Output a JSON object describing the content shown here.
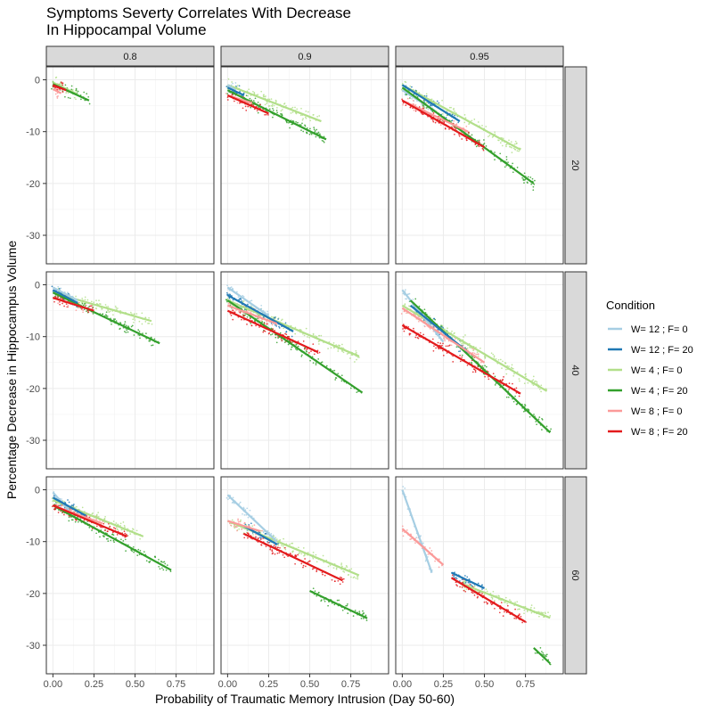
{
  "chart_data": {
    "type": "scatter",
    "title_lines": [
      "Symptoms Severty Correlates With Decrease",
      "In Hippocampal Volume"
    ],
    "xlabel": "Probability of Traumatic Memory Intrusion (Day 50-60)",
    "ylabel": "Percentage Decrease in Hippocampus Volume",
    "xlim": [
      -0.04,
      0.98
    ],
    "ylim": [
      -35.5,
      2.5
    ],
    "x_ticks": [
      0,
      0.25,
      0.5,
      0.75
    ],
    "x_tick_labels": [
      "0.00",
      "0.25",
      "0.50",
      "0.75"
    ],
    "y_ticks": [
      0,
      -10,
      -20,
      -30
    ],
    "y_tick_labels": [
      "0",
      "-10",
      "-20",
      "-30"
    ],
    "grid": true,
    "facet_cols": [
      "0.8",
      "0.9",
      "0.95"
    ],
    "facet_rows": [
      "20",
      "40",
      "60"
    ],
    "legend": {
      "title": "Condition",
      "position": "right",
      "items": [
        {
          "label": "W= 12 ; F= 0",
          "color": "#a6cee3"
        },
        {
          "label": "W= 12 ; F= 20",
          "color": "#1f78b4"
        },
        {
          "label": "W= 4 ; F= 0",
          "color": "#b2df8a"
        },
        {
          "label": "W= 4 ; F= 20",
          "color": "#33a02c"
        },
        {
          "label": "W= 8 ; F= 0",
          "color": "#fb9a99"
        },
        {
          "label": "W= 8 ; F= 20",
          "color": "#e31a1c"
        }
      ]
    },
    "panels": [
      {
        "row": "20",
        "col": "0.8",
        "series": [
          {
            "condition": "W= 4 ; F= 0",
            "x": [
              0.0,
              0.15
            ],
            "y": [
              -0.5,
              -2.8
            ]
          },
          {
            "condition": "W= 4 ; F= 20",
            "x": [
              0.0,
              0.22
            ],
            "y": [
              -0.8,
              -4.0
            ]
          },
          {
            "condition": "W= 8 ; F= 0",
            "x": [
              0.0,
              0.05
            ],
            "y": [
              -1.8,
              -2.6
            ]
          },
          {
            "condition": "W= 8 ; F= 20",
            "x": [
              0.0,
              0.08
            ],
            "y": [
              -1.0,
              -2.0
            ]
          }
        ]
      },
      {
        "row": "20",
        "col": "0.9",
        "series": [
          {
            "condition": "W= 12 ; F= 0",
            "x": [
              0.0,
              0.05
            ],
            "y": [
              -1.0,
              -2.0
            ]
          },
          {
            "condition": "W= 12 ; F= 20",
            "x": [
              0.0,
              0.1
            ],
            "y": [
              -1.5,
              -3.0
            ]
          },
          {
            "condition": "W= 4 ; F= 0",
            "x": [
              0.0,
              0.57
            ],
            "y": [
              -1.0,
              -8.0
            ]
          },
          {
            "condition": "W= 4 ; F= 20",
            "x": [
              0.0,
              0.6
            ],
            "y": [
              -2.0,
              -11.5
            ]
          },
          {
            "condition": "W= 8 ; F= 0",
            "x": [
              0.0,
              0.15
            ],
            "y": [
              -3.0,
              -4.5
            ]
          },
          {
            "condition": "W= 8 ; F= 20",
            "x": [
              0.0,
              0.25
            ],
            "y": [
              -3.0,
              -6.5
            ]
          }
        ]
      },
      {
        "row": "20",
        "col": "0.95",
        "series": [
          {
            "condition": "W= 12 ; F= 0",
            "x": [
              0.0,
              0.2
            ],
            "y": [
              -2.0,
              -6.0
            ]
          },
          {
            "condition": "W= 12 ; F= 20",
            "x": [
              0.0,
              0.35
            ],
            "y": [
              -1.0,
              -8.0
            ]
          },
          {
            "condition": "W= 4 ; F= 0",
            "x": [
              0.0,
              0.72
            ],
            "y": [
              -1.0,
              -13.5
            ]
          },
          {
            "condition": "W= 4 ; F= 20",
            "x": [
              0.0,
              0.8
            ],
            "y": [
              -1.5,
              -20.0
            ]
          },
          {
            "condition": "W= 8 ; F= 0",
            "x": [
              0.0,
              0.4
            ],
            "y": [
              -4.0,
              -10.0
            ]
          },
          {
            "condition": "W= 8 ; F= 20",
            "x": [
              0.0,
              0.5
            ],
            "y": [
              -4.0,
              -13.0
            ]
          }
        ]
      },
      {
        "row": "40",
        "col": "0.8",
        "series": [
          {
            "condition": "W= 12 ; F= 0",
            "x": [
              0.0,
              0.15
            ],
            "y": [
              -0.5,
              -3.0
            ]
          },
          {
            "condition": "W= 12 ; F= 20",
            "x": [
              0.0,
              0.15
            ],
            "y": [
              -1.0,
              -3.5
            ]
          },
          {
            "condition": "W= 4 ; F= 0",
            "x": [
              0.0,
              0.6
            ],
            "y": [
              -1.5,
              -7.0
            ]
          },
          {
            "condition": "W= 4 ; F= 20",
            "x": [
              0.0,
              0.65
            ],
            "y": [
              -1.5,
              -11.3
            ]
          },
          {
            "condition": "W= 8 ; F= 0",
            "x": [
              0.0,
              0.2
            ],
            "y": [
              -2.5,
              -4.5
            ]
          },
          {
            "condition": "W= 8 ; F= 20",
            "x": [
              0.0,
              0.25
            ],
            "y": [
              -2.5,
              -5.0
            ]
          }
        ]
      },
      {
        "row": "40",
        "col": "0.9",
        "series": [
          {
            "condition": "W= 12 ; F= 0",
            "x": [
              0.0,
              0.25
            ],
            "y": [
              -0.5,
              -6.0
            ]
          },
          {
            "condition": "W= 12 ; F= 20",
            "x": [
              0.0,
              0.4
            ],
            "y": [
              -2.0,
              -9.0
            ]
          },
          {
            "condition": "W= 4 ; F= 0",
            "x": [
              0.0,
              0.8
            ],
            "y": [
              -3.0,
              -13.8
            ]
          },
          {
            "condition": "W= 4 ; F= 20",
            "x": [
              0.0,
              0.82
            ],
            "y": [
              -3.0,
              -20.8
            ]
          },
          {
            "condition": "W= 8 ; F= 0",
            "x": [
              0.0,
              0.3
            ],
            "y": [
              -4.0,
              -7.5
            ]
          },
          {
            "condition": "W= 8 ; F= 20",
            "x": [
              0.0,
              0.55
            ],
            "y": [
              -5.0,
              -13.0
            ]
          }
        ]
      },
      {
        "row": "40",
        "col": "0.95",
        "series": [
          {
            "condition": "W= 12 ; F= 0",
            "x": [
              0.0,
              0.25
            ],
            "y": [
              -1.0,
              -11.0
            ]
          },
          {
            "condition": "W= 12 ; F= 20",
            "x": [
              0.05,
              0.4
            ],
            "y": [
              -4.0,
              -13.0
            ]
          },
          {
            "condition": "W= 4 ; F= 0",
            "x": [
              0.0,
              0.88
            ],
            "y": [
              -4.0,
              -20.5
            ]
          },
          {
            "condition": "W= 4 ; F= 20",
            "x": [
              0.05,
              0.9
            ],
            "y": [
              -3.0,
              -28.5
            ]
          },
          {
            "condition": "W= 8 ; F= 0",
            "x": [
              0.0,
              0.5
            ],
            "y": [
              -4.5,
              -15.0
            ]
          },
          {
            "condition": "W= 8 ; F= 20",
            "x": [
              0.0,
              0.72
            ],
            "y": [
              -7.8,
              -21.0
            ]
          }
        ]
      },
      {
        "row": "60",
        "col": "0.8",
        "series": [
          {
            "condition": "W= 12 ; F= 0",
            "x": [
              0.0,
              0.1
            ],
            "y": [
              -0.5,
              -4.0
            ]
          },
          {
            "condition": "W= 12 ; F= 20",
            "x": [
              0.0,
              0.2
            ],
            "y": [
              -1.5,
              -5.0
            ]
          },
          {
            "condition": "W= 4 ; F= 0",
            "x": [
              0.0,
              0.55
            ],
            "y": [
              -2.0,
              -9.0
            ]
          },
          {
            "condition": "W= 4 ; F= 20",
            "x": [
              0.0,
              0.72
            ],
            "y": [
              -3.0,
              -15.5
            ]
          },
          {
            "condition": "W= 8 ; F= 0",
            "x": [
              0.0,
              0.3
            ],
            "y": [
              -3.0,
              -6.5
            ]
          },
          {
            "condition": "W= 8 ; F= 20",
            "x": [
              0.0,
              0.45
            ],
            "y": [
              -3.0,
              -9.0
            ]
          }
        ]
      },
      {
        "row": "60",
        "col": "0.9",
        "series": [
          {
            "condition": "W= 12 ; F= 0",
            "x": [
              0.0,
              0.3
            ],
            "y": [
              -1.0,
              -10.0
            ]
          },
          {
            "condition": "W= 12 ; F= 20",
            "x": [
              0.1,
              0.3
            ],
            "y": [
              -7.0,
              -10.5
            ]
          },
          {
            "condition": "W= 4 ; F= 0",
            "x": [
              0.0,
              0.8
            ],
            "y": [
              -6.0,
              -16.5
            ]
          },
          {
            "condition": "W= 4 ; F= 20",
            "x": [
              0.5,
              0.85
            ],
            "y": [
              -19.5,
              -24.8
            ]
          },
          {
            "condition": "W= 8 ; F= 0",
            "x": [
              0.0,
              0.2
            ],
            "y": [
              -6.0,
              -8.0
            ]
          },
          {
            "condition": "W= 8 ; F= 20",
            "x": [
              0.1,
              0.7
            ],
            "y": [
              -8.5,
              -17.5
            ]
          }
        ]
      },
      {
        "row": "60",
        "col": "0.95",
        "series": [
          {
            "condition": "W= 12 ; F= 0",
            "x": [
              0.0,
              0.18
            ],
            "y": [
              0.0,
              -16.0
            ]
          },
          {
            "condition": "W= 12 ; F= 20",
            "x": [
              0.3,
              0.5
            ],
            "y": [
              -16.0,
              -19.0
            ]
          },
          {
            "condition": "W= 4 ; F= 0",
            "x": [
              0.35,
              0.9
            ],
            "y": [
              -18.0,
              -24.7
            ]
          },
          {
            "condition": "W= 4 ; F= 20",
            "x": [
              0.8,
              0.9
            ],
            "y": [
              -30.5,
              -33.5
            ]
          },
          {
            "condition": "W= 8 ; F= 0",
            "x": [
              0.0,
              0.25
            ],
            "y": [
              -7.5,
              -14.5
            ]
          },
          {
            "condition": "W= 8 ; F= 20",
            "x": [
              0.3,
              0.75
            ],
            "y": [
              -17.0,
              -25.5
            ]
          }
        ]
      }
    ]
  }
}
